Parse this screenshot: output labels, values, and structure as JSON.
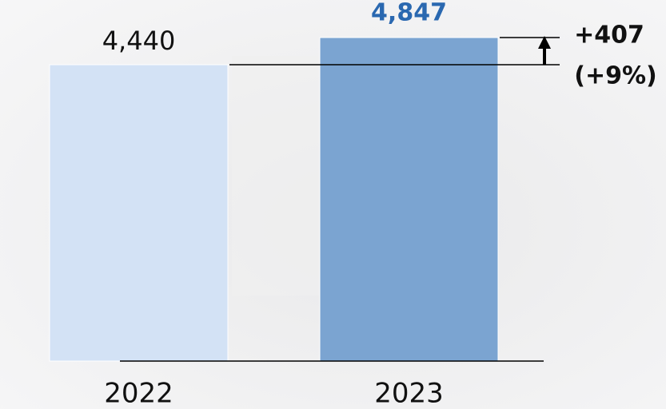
{
  "chart_data": {
    "type": "bar",
    "categories": [
      "2022",
      "2023"
    ],
    "values": [
      4440,
      4847
    ],
    "value_labels": [
      "4,440",
      "4,847"
    ],
    "colors": [
      "#d3e2f5",
      "#7ba4d1"
    ],
    "highlight_label_color": "#2a68b0",
    "annotation": [
      "+407",
      "(+9%)"
    ]
  }
}
